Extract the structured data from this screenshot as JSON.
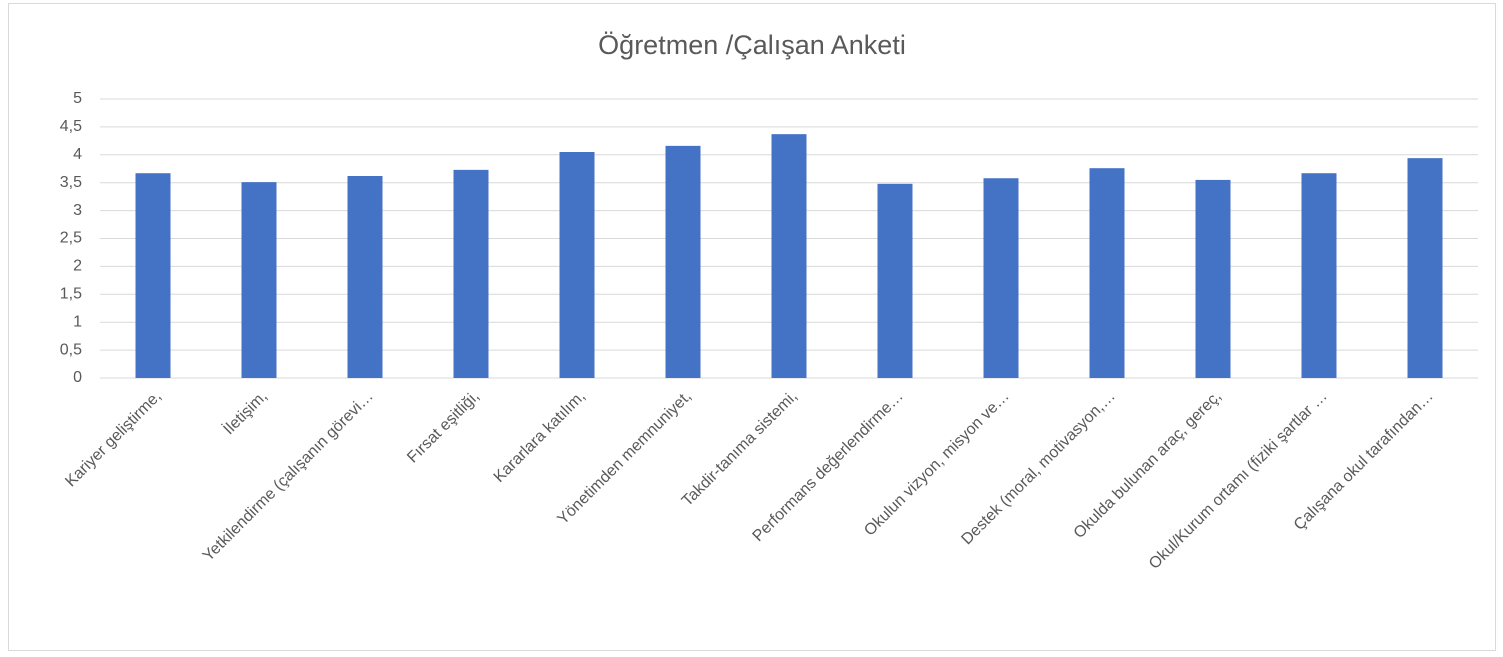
{
  "chart_data": {
    "type": "bar",
    "title": "Öğretmen /Çalışan Anketi",
    "categories": [
      "Kariyer geliştirme,",
      "İletişim,",
      "Yetkilendirme (çalışanın görevi…",
      "Fırsat eşitliği,",
      "Kararlara katılım,",
      "Yönetimden memnuniyet,",
      "Takdir-tanıma sistemi,",
      "Performans değerlendirme…",
      "Okulun vizyon, misyon ve…",
      "Destek (moral, motivasyon,…",
      "Okulda bulunan araç, gereç,",
      "Okul/Kurum ortamı (fiziki şartlar …",
      "Çalışana okul tarafından…"
    ],
    "values": [
      3.67,
      3.51,
      3.62,
      3.73,
      4.05,
      4.16,
      4.37,
      3.48,
      3.58,
      3.76,
      3.55,
      3.67,
      3.94
    ],
    "color": "#4472c4",
    "ylim": [
      0,
      5
    ],
    "yticks": [
      0,
      {
        "value": 0.5,
        "label": "0,5"
      },
      1,
      {
        "value": 1.5,
        "label": "1,5"
      },
      2,
      {
        "value": 2.5,
        "label": "2,5"
      },
      3,
      {
        "value": 3.5,
        "label": "3,5"
      },
      4,
      {
        "value": 4.5,
        "label": "4,5"
      },
      5
    ],
    "grid": true
  }
}
